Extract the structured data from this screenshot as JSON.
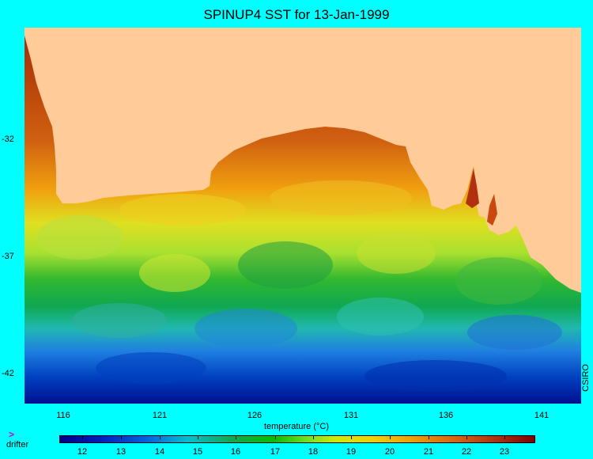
{
  "title": "SPINUP4 SST for 13-Jan-1999",
  "credit": "CSIRO",
  "axes": {
    "x_ticks": [
      "116",
      "121",
      "126",
      "131",
      "136",
      "141"
    ],
    "y_ticks": [
      "-32",
      "-37",
      "-42"
    ]
  },
  "colorbar": {
    "title": "temperature (°C)",
    "labels": [
      "12",
      "13",
      "14",
      "15",
      "16",
      "17",
      "18",
      "19",
      "20",
      "21",
      "22",
      "23"
    ]
  },
  "legend": {
    "marker": ">",
    "label": "drifter"
  },
  "colors": {
    "background": "#00ffff",
    "land": "#ffcc99",
    "warm": "#b03010",
    "cold": "#00008a"
  }
}
